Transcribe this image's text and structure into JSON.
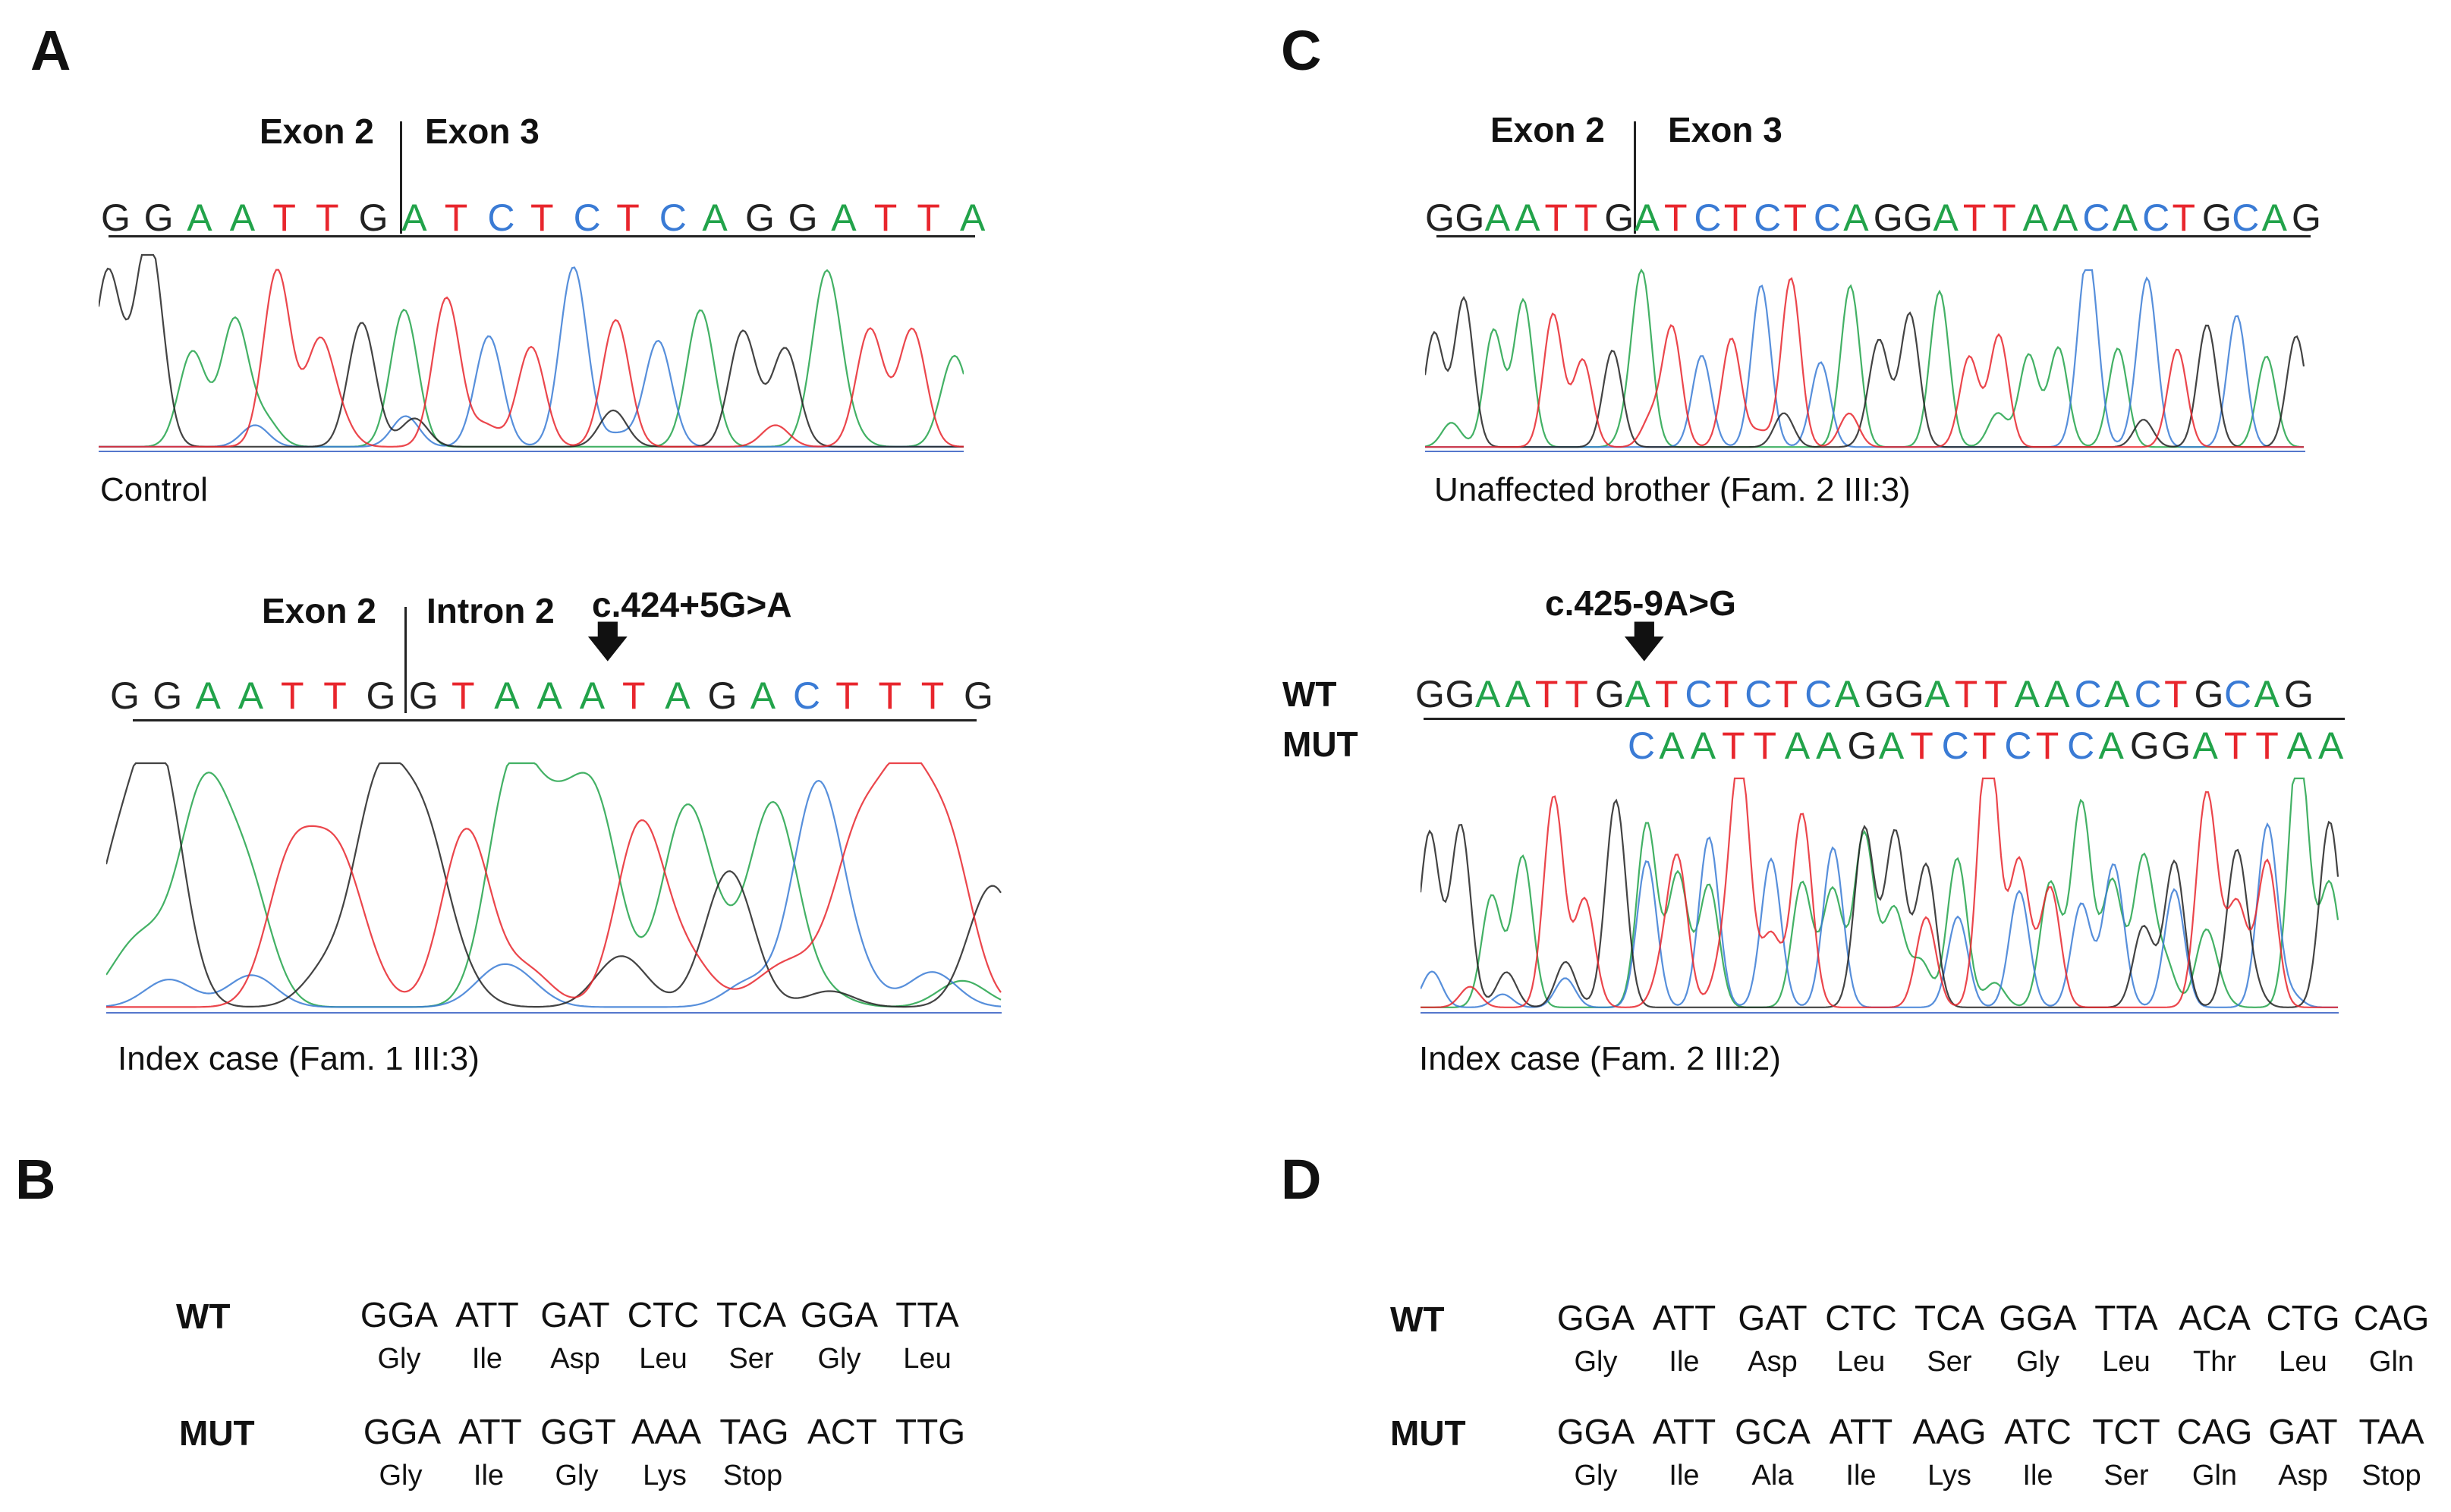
{
  "colors": {
    "A": "#22a34a",
    "T": "#e8262d",
    "C": "#3a7bd5",
    "G": "#222222"
  },
  "panels": {
    "A": {
      "letter": "A",
      "control": {
        "exon_left": "Exon 2",
        "exon_right": "Exon 3",
        "sequence": "GGAATTGATCTCTCAGGATTA",
        "caption": "Control"
      },
      "index": {
        "exon_left": "Exon 2",
        "exon_right": "Intron 2",
        "mutation": "c.424+5G>A",
        "sequence": "GGAATTGGTAAATAGACTTTG",
        "caption": "Index case  (Fam. 1 III:3)"
      }
    },
    "B": {
      "letter": "B",
      "wt_label": "WT",
      "mut_label": "MUT",
      "wt_codons": [
        "GGA",
        "ATT",
        "GAT",
        "CTC",
        "TCA",
        "GGA",
        "TTA"
      ],
      "wt_aa": [
        "Gly",
        "Ile",
        "Asp",
        "Leu",
        "Ser",
        "Gly",
        "Leu"
      ],
      "mut_codons": [
        "GGA",
        "ATT",
        "GGT",
        "AAA",
        "TAG",
        "ACT",
        "TTG"
      ],
      "mut_aa": [
        "Gly",
        "Ile",
        "Gly",
        "Lys",
        "Stop"
      ]
    },
    "C": {
      "letter": "C",
      "brother": {
        "exon_left": "Exon 2",
        "exon_right": "Exon 3",
        "sequence": "GGAATTGATCTCTCAGGATTAACACTGCAG",
        "caption": "Unaffected brother (Fam. 2 III:3)"
      },
      "index": {
        "mutation": "c.425-9A>G",
        "wt_label": "WT",
        "mut_label": "MUT",
        "wt_sequence": "GGAATTGATCTCTCAGGATTAACACTGCAG",
        "mut_sequence": "CAATTAAGATCTCTCAGGATTAA",
        "caption": "Index case (Fam. 2 III:2)"
      }
    },
    "D": {
      "letter": "D",
      "wt_label": "WT",
      "mut_label": "MUT",
      "wt_codons": [
        "GGA",
        "ATT",
        "GAT",
        "CTC",
        "TCA",
        "GGA",
        "TTA",
        "ACA",
        "CTG",
        "CAG"
      ],
      "wt_aa": [
        "Gly",
        "Ile",
        "Asp",
        "Leu",
        "Ser",
        "Gly",
        "Leu",
        "Thr",
        "Leu",
        "Gln"
      ],
      "mut_codons": [
        "GGA",
        "ATT",
        "GCA",
        "ATT",
        "AAG",
        "ATC",
        "TCT",
        "CAG",
        "GAT",
        "TAA"
      ],
      "mut_aa": [
        "Gly",
        "Ile",
        "Ala",
        "Ile",
        "Lys",
        "Ile",
        "Ser",
        "Gln",
        "Asp",
        "Stop"
      ]
    }
  }
}
